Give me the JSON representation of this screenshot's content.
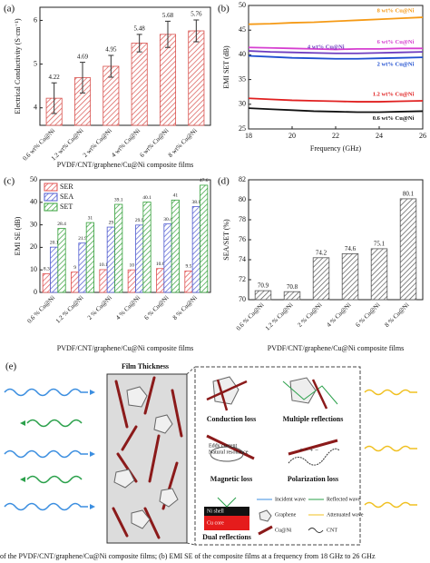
{
  "chart_data": [
    {
      "type": "bar",
      "panel_label": "(a)",
      "y_label": "Electrical Conductivity (S·cm⁻¹)",
      "x_label": "PVDF/CNT/graphene/Cu@Ni composite films",
      "categories": [
        "0.6 wt% Cu@Ni",
        "1.2 wt% Cu@Ni",
        "2 wt% Cu@Ni",
        "4 wt% Cu@Ni",
        "6 wt% Cu@Ni",
        "8 wt% Cu@Ni"
      ],
      "values": [
        4.22,
        4.69,
        4.95,
        5.48,
        5.68,
        5.76
      ],
      "errors": [
        0.35,
        0.35,
        0.25,
        0.2,
        0.3,
        0.25
      ],
      "color": "#d9534f",
      "ylim": [
        3.6,
        6.3
      ],
      "yticks": [
        4,
        5,
        6
      ]
    },
    {
      "type": "line",
      "panel_label": "(b)",
      "x_label": "Frequency (GHz)",
      "y_label": "EMI SET (dB)",
      "x": [
        18,
        19,
        20,
        21,
        22,
        23,
        24,
        25,
        26
      ],
      "xlim": [
        18,
        26
      ],
      "xticks": [
        18,
        20,
        22,
        24,
        26
      ],
      "ylim": [
        25,
        50
      ],
      "yticks": [
        25,
        30,
        35,
        40,
        45,
        50
      ],
      "series": [
        {
          "name": "8 wt% Cu@Ni",
          "color": "#f59a16",
          "values": [
            46.2,
            46.3,
            46.5,
            46.6,
            46.8,
            47.0,
            47.2,
            47.4,
            47.6
          ]
        },
        {
          "name": "6 wt% Cu@Ni",
          "color": "#d63fd0",
          "values": [
            41.5,
            41.4,
            41.3,
            41.2,
            41.1,
            41.2,
            41.2,
            41.3,
            41.3
          ]
        },
        {
          "name": "4 wt% Cu@Ni",
          "color": "#6e3cc0",
          "values": [
            40.8,
            40.6,
            40.5,
            40.4,
            40.3,
            40.3,
            40.4,
            40.5,
            40.6
          ]
        },
        {
          "name": "2 wt% Cu@Ni",
          "color": "#1f4fd0",
          "values": [
            39.8,
            39.6,
            39.4,
            39.3,
            39.2,
            39.2,
            39.3,
            39.4,
            39.5
          ]
        },
        {
          "name": "1.2 wt% Cu@Ni",
          "color": "#e02020",
          "values": [
            31.2,
            31.0,
            30.8,
            30.7,
            30.6,
            30.5,
            30.5,
            30.6,
            30.7
          ]
        },
        {
          "name": "0.6 wt% Cu@Ni",
          "color": "#111111",
          "values": [
            29.2,
            29.0,
            28.8,
            28.6,
            28.5,
            28.4,
            28.4,
            28.5,
            28.6
          ]
        }
      ]
    },
    {
      "type": "bar",
      "panel_label": "(c)",
      "y_label": "EMI SE (dB)",
      "x_label": "PVDF/CNT/graphene/Cu@Ni composite films",
      "categories": [
        "0.6 % Cu@Ni",
        "1.2 % Cu@Ni",
        "2 % Cu@Ni",
        "4 % Cu@Ni",
        "6 % Cu@Ni",
        "8 % Cu@Ni"
      ],
      "ylim": [
        0,
        50
      ],
      "yticks": [
        0,
        10,
        20,
        30,
        40,
        50
      ],
      "series": [
        {
          "name": "SER",
          "color": "#e05050",
          "values": [
            8.3,
            9,
            10.1,
            10,
            10.6,
            9.5
          ]
        },
        {
          "name": "SEA",
          "color": "#4f5bd0",
          "values": [
            20.1,
            21.9,
            29,
            29.9,
            30.4,
            38.1
          ]
        },
        {
          "name": "SET",
          "color": "#34a03a",
          "values": [
            28.4,
            31,
            39.1,
            40.1,
            41,
            47.6
          ]
        }
      ]
    },
    {
      "type": "bar",
      "panel_label": "(d)",
      "y_label": "SEA/SET (%)",
      "x_label": "PVDF/CNT/graphene/Cu@Ni composite films",
      "categories": [
        "0.6 % Cu@Ni",
        "1.2 % Cu@Ni",
        "2 % Cu@Ni",
        "4 % Cu@Ni",
        "6 % Cu@Ni",
        "8 % Cu@Ni"
      ],
      "values": [
        70.9,
        70.8,
        74.2,
        74.6,
        75.1,
        80.1
      ],
      "color": "#555555",
      "ylim": [
        70,
        82
      ],
      "yticks": [
        70,
        72,
        74,
        76,
        78,
        80,
        82
      ]
    }
  ],
  "diagram": {
    "label": "(e)",
    "film_thickness": "Film Thickness",
    "mechanisms": [
      "Conduction loss",
      "Multiple reflections",
      "Magnetic loss",
      "Polarization loss",
      "Dual reflections"
    ],
    "inner": [
      "Eddy current",
      "Natural resonance",
      "Ni shell",
      "Cu core"
    ],
    "legend": [
      "Incident wave",
      "Reflected wave",
      "Graphene",
      "Attenuated wave",
      "Cu@Ni",
      "CNT"
    ]
  },
  "caption": "of the PVDF/CNT/graphene/Cu@Ni composite films; (b) EMI SE of the composite films at a frequency from 18 GHz to 26 GHz"
}
